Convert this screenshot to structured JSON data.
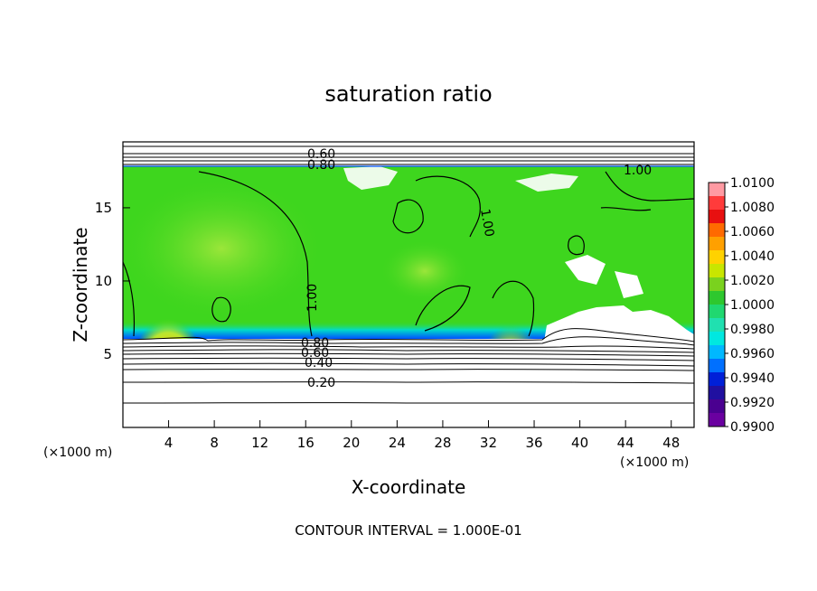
{
  "chart_data": {
    "type": "heatmap",
    "title": "saturation ratio",
    "xlabel": "X-coordinate",
    "ylabel": "Z-coordinate",
    "x_unit": "(×1000 m)",
    "y_unit": "(×1000 m)",
    "xlim": [
      0,
      50
    ],
    "ylim": [
      0,
      19.5
    ],
    "x_ticks": [
      "4",
      "8",
      "12",
      "16",
      "20",
      "24",
      "28",
      "32",
      "36",
      "40",
      "44",
      "48"
    ],
    "y_ticks": [
      "5",
      "10",
      "15"
    ],
    "colorbar": {
      "labels": [
        "1.0100",
        "1.0080",
        "1.0060",
        "1.0040",
        "1.0020",
        "1.0000",
        "0.9980",
        "0.9960",
        "0.9940",
        "0.9920",
        "0.9900"
      ],
      "colors": [
        "#ff9aa2",
        "#ff3b3b",
        "#e81010",
        "#ff6a00",
        "#ffa000",
        "#ffd200",
        "#c8e600",
        "#7ad21e",
        "#2ec82e",
        "#20d870",
        "#20e0b0",
        "#00e8e0",
        "#00b8ff",
        "#0070ff",
        "#0020d8",
        "#2010a0",
        "#4a0090",
        "#6a00a0"
      ]
    },
    "contour_labels": [
      "0.60",
      "0.80",
      "1.00",
      "1.00",
      "1.00",
      "0.80",
      "0.60",
      "0.40",
      "0.20"
    ],
    "footer": "CONTOUR INTERVAL = 1.000E-01",
    "colors": {
      "field": "#3ed61e",
      "field_light": "#8ee030",
      "hot_core": "#ffffff",
      "hot_ring": "#ff2020",
      "cyan_band": "#00dcdc",
      "blue_band": "#0050ff",
      "line": "#000000"
    }
  }
}
